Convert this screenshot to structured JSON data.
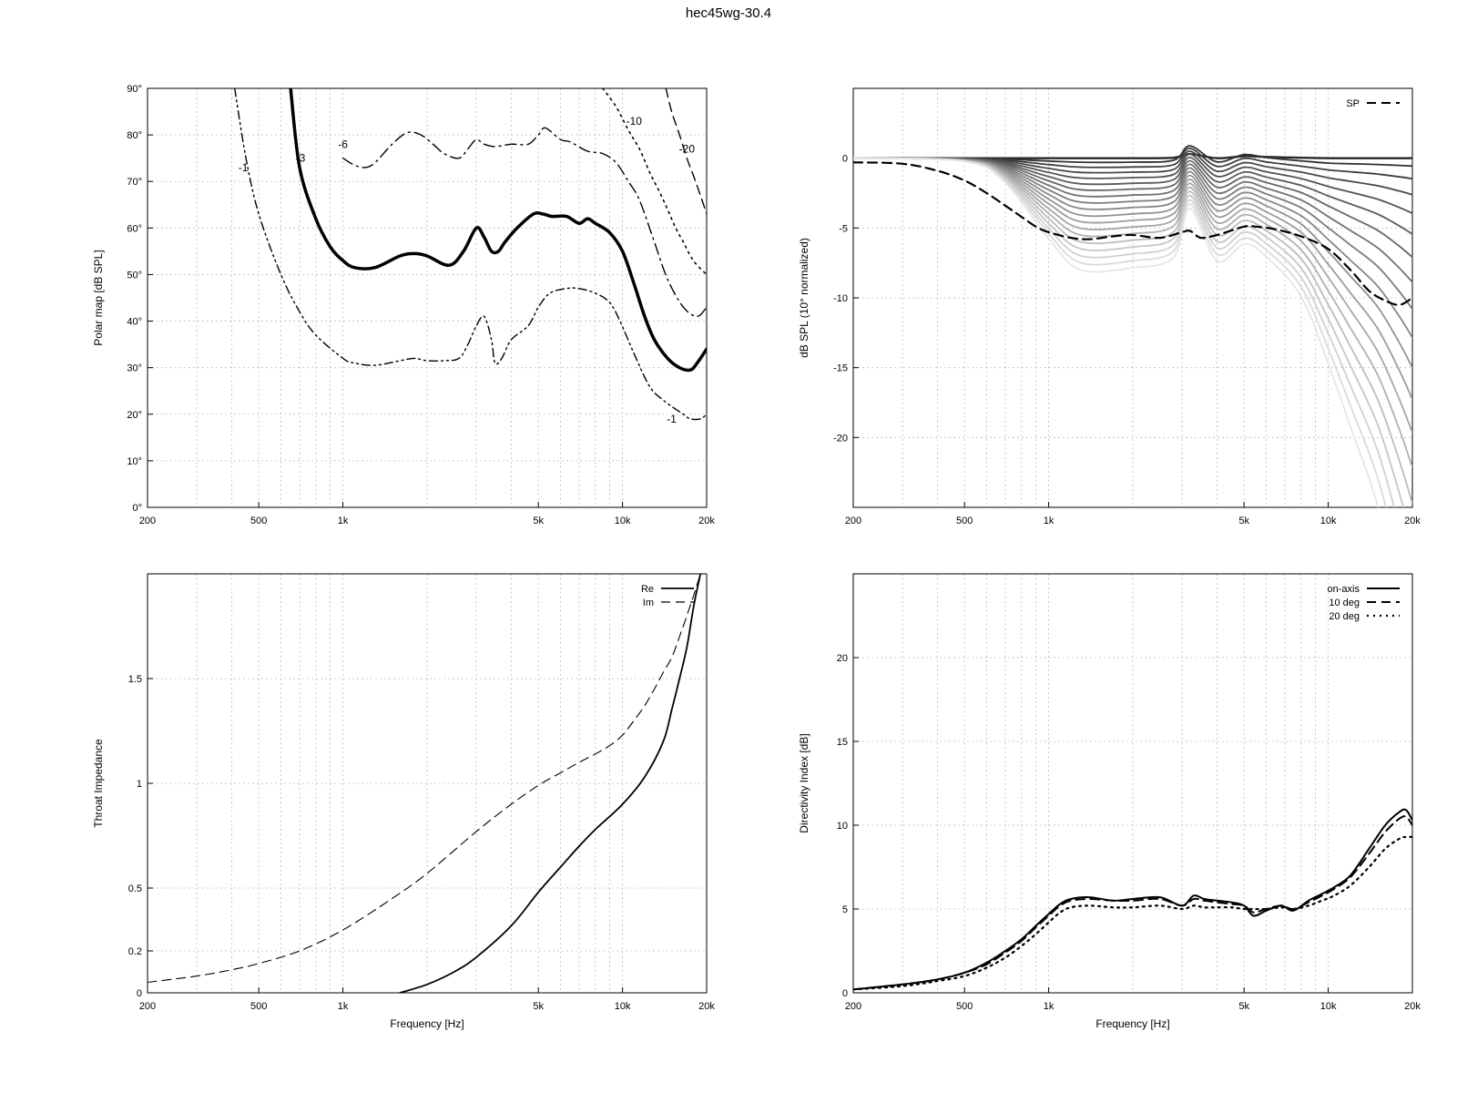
{
  "title": "hec45wg-30.4",
  "chart_data": [
    {
      "type": "line",
      "id": "polar",
      "xscale": "log",
      "xlim": [
        200,
        20000
      ],
      "ylim": [
        0,
        90
      ],
      "xticks": [
        200,
        500,
        1000,
        5000,
        10000,
        20000
      ],
      "xticklabels": [
        "200",
        "500",
        "1k",
        "5k",
        "10k",
        "20k"
      ],
      "yticks": [
        0,
        10,
        20,
        30,
        40,
        50,
        60,
        70,
        80,
        90
      ],
      "yticklabels": [
        "0°",
        "10°",
        "20°",
        "30°",
        "40°",
        "50°",
        "60°",
        "70°",
        "80°",
        "90°"
      ],
      "xlabel": "",
      "ylabel": "Polar map [dB SPL]",
      "grid": true,
      "series": [
        {
          "label": "-1",
          "style": "dashdotdot",
          "width": 1.4,
          "x": [
            410,
            450,
            500,
            600,
            700,
            800,
            1000,
            1100,
            1300,
            1600,
            1800,
            2000,
            2300,
            2600,
            2800,
            3000,
            3200,
            3400,
            3500,
            3700,
            4000,
            4600,
            5000,
            5500,
            6300,
            7000,
            8000,
            9000,
            9800,
            11000,
            12500,
            14000,
            16500,
            17500,
            19000,
            20000
          ],
          "y": [
            90,
            75,
            63,
            50,
            42,
            37,
            32,
            31,
            30.5,
            31.5,
            32,
            31.5,
            31.5,
            32,
            35,
            39,
            41,
            36,
            31,
            32,
            36,
            39,
            43,
            46,
            47,
            47,
            46,
            44,
            40,
            33,
            26,
            23,
            20,
            19,
            19,
            20
          ]
        },
        {
          "label": "-3",
          "style": "solid",
          "width": 3.5,
          "x": [
            650,
            700,
            800,
            900,
            1000,
            1100,
            1300,
            1600,
            1800,
            2000,
            2400,
            2700,
            3000,
            3200,
            3400,
            3600,
            3800,
            4200,
            4800,
            5200,
            5600,
            6300,
            7000,
            7500,
            8000,
            9000,
            10000,
            11000,
            12000,
            13000,
            14500,
            16000,
            17500,
            18500,
            20000
          ],
          "y": [
            90,
            73,
            62,
            56,
            53,
            51.5,
            51.5,
            54,
            54.5,
            54,
            52,
            55,
            60,
            58,
            55,
            55,
            57,
            60,
            63,
            63,
            62.5,
            62.5,
            61,
            62,
            61,
            59,
            55,
            48,
            41,
            36,
            32,
            30,
            29.5,
            31,
            34
          ]
        },
        {
          "label": "-6",
          "style": "dashdot",
          "width": 1.4,
          "x": [
            1000,
            1100,
            1200,
            1300,
            1500,
            1700,
            1900,
            2100,
            2300,
            2600,
            2800,
            3000,
            3200,
            3500,
            4000,
            4600,
            5000,
            5300,
            6000,
            6500,
            7500,
            8500,
            9500,
            10500,
            11500,
            13000,
            14500,
            16500,
            18500,
            20000
          ],
          "y": [
            75,
            73.5,
            73,
            74,
            78,
            80.5,
            80,
            78,
            76,
            75,
            77,
            79,
            78,
            77.5,
            78,
            78,
            80,
            81.5,
            79,
            78.5,
            76.5,
            76,
            74,
            70,
            66,
            57,
            49,
            43,
            41,
            43
          ]
        },
        {
          "label": "-10",
          "style": "dotted",
          "width": 1.6,
          "x": [
            8500,
            9500,
            10500,
            11500,
            12500,
            13500,
            14500,
            15500,
            16500,
            17500,
            18500,
            20000
          ],
          "y": [
            90,
            86,
            81,
            77,
            72,
            68,
            64,
            60,
            57,
            54,
            52,
            50
          ]
        },
        {
          "label": "-20",
          "style": "dashed",
          "width": 1.4,
          "x": [
            14300,
            15000,
            16000,
            17000,
            18000,
            19000,
            20000
          ],
          "y": [
            90,
            85,
            80,
            75,
            71,
            67,
            63
          ]
        }
      ],
      "contour_labels": [
        {
          "text": "-1",
          "x": 440,
          "y": 73
        },
        {
          "text": "-3",
          "x": 705,
          "y": 75
        },
        {
          "text": "-6",
          "x": 1000,
          "y": 78
        },
        {
          "text": "-10",
          "x": 11000,
          "y": 83
        },
        {
          "text": "-20",
          "x": 17000,
          "y": 77
        },
        {
          "text": "-1",
          "x": 15000,
          "y": 19
        }
      ]
    },
    {
      "type": "line",
      "id": "spl",
      "xscale": "log",
      "xlim": [
        200,
        20000
      ],
      "ylim": [
        -25,
        5
      ],
      "xticks": [
        200,
        500,
        1000,
        5000,
        10000,
        20000
      ],
      "xticklabels": [
        "200",
        "500",
        "1k",
        "5k",
        "10k",
        "20k"
      ],
      "yticks": [
        0,
        -5,
        -10,
        -15,
        -20
      ],
      "yticklabels": [
        "0",
        "-5",
        "-10",
        "-15",
        "-20"
      ],
      "xlabel": "",
      "ylabel": "dB SPL (10° normalized)",
      "grid": true,
      "legend": {
        "position": "top-right",
        "entries": [
          "SP"
        ]
      },
      "angle_family": {
        "x": [
          200,
          500,
          700,
          1000,
          1300,
          2000,
          2800,
          3200,
          4000,
          5000,
          6000,
          8000,
          10000,
          12000,
          15000,
          18000,
          20000
        ],
        "angle_step_deg": 5,
        "angle_count": 19,
        "depth_profile": [
          0,
          0.03,
          0.22,
          0.72,
          1.0,
          0.98,
          0.93,
          0.85,
          0.92,
          0.96,
          1.0,
          1.04,
          1.12,
          1.2,
          1.3,
          1.42,
          1.5
        ],
        "peaks_db": [
          3200,
          5400,
          7000
        ]
      },
      "sp_series": {
        "name": "SP",
        "x": [
          200,
          300,
          400,
          500,
          600,
          700,
          800,
          900,
          1000,
          1200,
          1400,
          1700,
          2000,
          2500,
          3000,
          3200,
          3500,
          4000,
          5000,
          5500,
          6500,
          8000,
          10000,
          12000,
          14000,
          16000,
          18000,
          20000
        ],
        "y": [
          -0.3,
          -0.4,
          -0.9,
          -1.6,
          -2.5,
          -3.4,
          -4.2,
          -4.9,
          -5.3,
          -5.7,
          -5.8,
          -5.6,
          -5.5,
          -5.7,
          -5.3,
          -5.2,
          -5.7,
          -5.5,
          -4.9,
          -4.9,
          -5.1,
          -5.6,
          -6.5,
          -8.0,
          -9.5,
          -10.2,
          -10.5,
          -10.0
        ]
      }
    },
    {
      "type": "line",
      "id": "impedance",
      "xscale": "log",
      "xlim": [
        200,
        20000
      ],
      "ylim": [
        0,
        2
      ],
      "xticks": [
        200,
        500,
        1000,
        5000,
        10000,
        20000
      ],
      "xticklabels": [
        "200",
        "500",
        "1k",
        "5k",
        "10k",
        "20k"
      ],
      "yticks": [
        0,
        0.2,
        0.5,
        1,
        1.5
      ],
      "yticklabels": [
        "0",
        "0.2",
        "0.5",
        "1",
        "1.5"
      ],
      "xlabel": "Frequency [Hz]",
      "ylabel": "Throat Impedance",
      "grid": true,
      "legend": {
        "position": "top-right",
        "entries": [
          "Re",
          "Im"
        ]
      },
      "series": [
        {
          "name": "Re",
          "style": "solid",
          "x": [
            1600,
            2000,
            2500,
            3000,
            4000,
            5000,
            6000,
            7000,
            8000,
            10000,
            12000,
            14000,
            15000,
            16000,
            17000,
            18000,
            19000
          ],
          "y": [
            0,
            0.04,
            0.1,
            0.17,
            0.32,
            0.48,
            0.6,
            0.7,
            0.78,
            0.9,
            1.03,
            1.2,
            1.35,
            1.5,
            1.65,
            1.85,
            2.0
          ]
        },
        {
          "name": "Im",
          "style": "dashed",
          "x": [
            200,
            300,
            400,
            500,
            700,
            1000,
            1500,
            2000,
            3000,
            4000,
            5000,
            6000,
            7000,
            8000,
            9000,
            10000,
            11000,
            12000,
            13000,
            14000,
            15000,
            16000,
            17000,
            18000,
            19000
          ],
          "y": [
            0.05,
            0.08,
            0.11,
            0.14,
            0.2,
            0.3,
            0.45,
            0.57,
            0.77,
            0.9,
            0.99,
            1.05,
            1.1,
            1.14,
            1.18,
            1.23,
            1.3,
            1.37,
            1.45,
            1.53,
            1.6,
            1.7,
            1.8,
            1.9,
            2.0
          ]
        }
      ]
    },
    {
      "type": "line",
      "id": "directivity",
      "xscale": "log",
      "xlim": [
        200,
        20000
      ],
      "ylim": [
        0,
        25
      ],
      "xticks": [
        200,
        500,
        1000,
        5000,
        10000,
        20000
      ],
      "xticklabels": [
        "200",
        "500",
        "1k",
        "5k",
        "10k",
        "20k"
      ],
      "yticks": [
        0,
        5,
        10,
        15,
        20
      ],
      "yticklabels": [
        "0",
        "5",
        "10",
        "15",
        "20"
      ],
      "xlabel": "Frequency [Hz]",
      "ylabel": "Directivity Index [dB]",
      "grid": true,
      "legend": {
        "position": "top-right",
        "entries": [
          "on-axis",
          "10 deg",
          "20 deg"
        ]
      },
      "series": [
        {
          "name": "on-axis",
          "style": "solid",
          "x": [
            200,
            300,
            400,
            500,
            600,
            700,
            800,
            900,
            1000,
            1100,
            1200,
            1400,
            1700,
            2000,
            2500,
            3000,
            3300,
            3600,
            4000,
            4500,
            5000,
            5400,
            6000,
            6800,
            7500,
            8500,
            9500,
            10500,
            12000,
            14000,
            16000,
            18000,
            19000,
            20000
          ],
          "y": [
            0.2,
            0.5,
            0.8,
            1.2,
            1.8,
            2.5,
            3.2,
            4.0,
            4.7,
            5.3,
            5.6,
            5.7,
            5.5,
            5.6,
            5.7,
            5.2,
            5.8,
            5.6,
            5.5,
            5.4,
            5.2,
            4.6,
            4.9,
            5.2,
            4.9,
            5.5,
            5.9,
            6.3,
            7.0,
            8.6,
            10.0,
            10.8,
            10.9,
            10.3
          ]
        },
        {
          "name": "10 deg",
          "style": "dashed",
          "x": [
            200,
            300,
            400,
            500,
            600,
            700,
            800,
            900,
            1000,
            1100,
            1200,
            1400,
            1700,
            2000,
            2500,
            3000,
            3300,
            3600,
            4000,
            4500,
            5000,
            5400,
            6000,
            6800,
            7500,
            8500,
            9500,
            10500,
            12000,
            14000,
            16000,
            18000,
            19000,
            20000
          ],
          "y": [
            0.2,
            0.5,
            0.8,
            1.2,
            1.7,
            2.4,
            3.1,
            3.9,
            4.6,
            5.2,
            5.5,
            5.6,
            5.5,
            5.5,
            5.6,
            5.2,
            5.6,
            5.5,
            5.4,
            5.3,
            5.2,
            4.8,
            5.0,
            5.2,
            5.0,
            5.4,
            5.8,
            6.2,
            6.9,
            8.3,
            9.6,
            10.4,
            10.5,
            10.0
          ]
        },
        {
          "name": "20 deg",
          "style": "dotted",
          "x": [
            200,
            300,
            400,
            500,
            600,
            700,
            800,
            900,
            1000,
            1100,
            1200,
            1400,
            1700,
            2000,
            2500,
            3000,
            3300,
            3600,
            4000,
            4500,
            5000,
            5400,
            6000,
            6800,
            7500,
            8500,
            9500,
            10500,
            12000,
            14000,
            16000,
            18000,
            19000,
            20000
          ],
          "y": [
            0.2,
            0.4,
            0.7,
            1.0,
            1.5,
            2.1,
            2.8,
            3.5,
            4.2,
            4.8,
            5.1,
            5.2,
            5.1,
            5.1,
            5.2,
            5.0,
            5.2,
            5.1,
            5.1,
            5.1,
            5.0,
            5.0,
            5.0,
            5.1,
            5.0,
            5.2,
            5.5,
            5.8,
            6.4,
            7.5,
            8.6,
            9.2,
            9.3,
            9.3
          ]
        }
      ]
    }
  ]
}
